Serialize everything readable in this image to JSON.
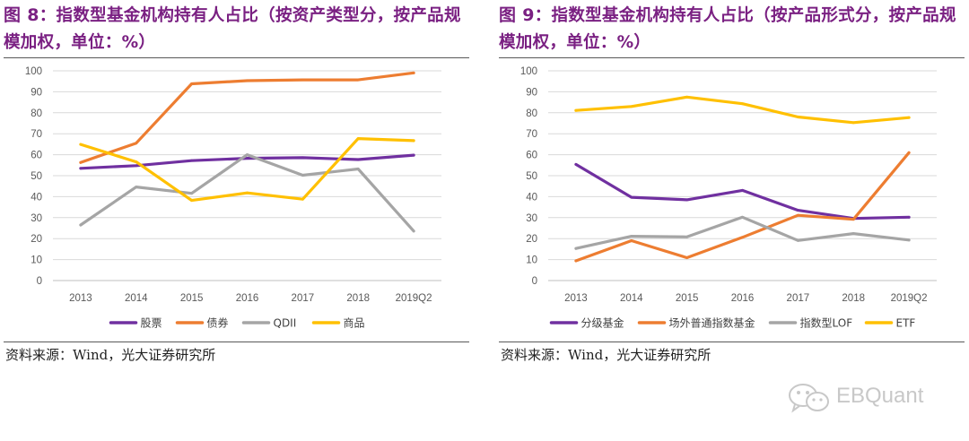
{
  "watermark": "EBQuant",
  "chart_data": [
    {
      "type": "line",
      "fig_label": "图 8",
      "title": "：指数型基金机构持有人占比（按资产类型分，按产品规模加权，单位：%）",
      "categories": [
        "2013",
        "2014",
        "2015",
        "2016",
        "2017",
        "2018",
        "2019Q2"
      ],
      "ylim": [
        0,
        100
      ],
      "yticks": [
        0,
        10,
        20,
        30,
        40,
        50,
        60,
        70,
        80,
        90,
        100
      ],
      "grid": true,
      "legend_position": "bottom",
      "series": [
        {
          "name": "股票",
          "color": "#7030a0",
          "values": [
            53.5,
            54.8,
            57.2,
            58.3,
            58.6,
            57.7,
            59.8
          ]
        },
        {
          "name": "债券",
          "color": "#ed7d31",
          "values": [
            56.3,
            65.5,
            93.8,
            95.3,
            95.7,
            95.7,
            99.0
          ]
        },
        {
          "name": "QDII",
          "color": "#a5a5a5",
          "values": [
            26.5,
            44.6,
            41.6,
            60.0,
            50.2,
            53.2,
            23.6
          ]
        },
        {
          "name": "商品",
          "color": "#ffc000",
          "values": [
            64.9,
            56.6,
            38.2,
            41.8,
            38.8,
            67.7,
            66.7
          ]
        }
      ],
      "source": "资料来源：Wind，光大证券研究所"
    },
    {
      "type": "line",
      "fig_label": "图 9",
      "title": "：指数型基金机构持有人占比（按产品形式分，按产品规模加权，单位：%）",
      "categories": [
        "2013",
        "2014",
        "2015",
        "2016",
        "2017",
        "2018",
        "2019Q2"
      ],
      "ylim": [
        0,
        100
      ],
      "yticks": [
        0,
        10,
        20,
        30,
        40,
        50,
        60,
        70,
        80,
        90,
        100
      ],
      "grid": true,
      "legend_position": "bottom",
      "series": [
        {
          "name": "分级基金",
          "color": "#7030a0",
          "values": [
            55.4,
            39.7,
            38.5,
            43.0,
            33.5,
            29.6,
            30.2
          ]
        },
        {
          "name": "场外普通指数基金",
          "color": "#ed7d31",
          "values": [
            9.4,
            19.0,
            10.9,
            20.6,
            31.1,
            29.2,
            61.0
          ]
        },
        {
          "name": "指数型LOF",
          "color": "#a5a5a5",
          "values": [
            15.3,
            21.1,
            20.8,
            30.2,
            19.1,
            22.4,
            19.3
          ]
        },
        {
          "name": "ETF",
          "color": "#ffc000",
          "values": [
            81.1,
            83.0,
            87.5,
            84.3,
            78.0,
            75.3,
            77.7
          ]
        }
      ],
      "source": "资料来源：Wind，光大证券研究所"
    }
  ]
}
